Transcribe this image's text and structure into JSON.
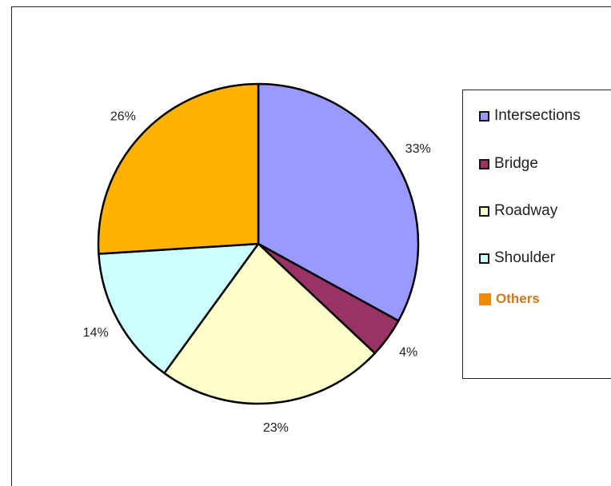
{
  "chart_data": {
    "type": "pie",
    "title": "",
    "slices": [
      {
        "label": "Intersections",
        "value": 33,
        "value_label": "33%",
        "color": "#9999FF"
      },
      {
        "label": "Bridge",
        "value": 4,
        "value_label": "4%",
        "color": "#993366"
      },
      {
        "label": "Roadway",
        "value": 23,
        "value_label": "23%",
        "color": "#FFFFCC"
      },
      {
        "label": "Shoulder",
        "value": 14,
        "value_label": "14%",
        "color": "#CCFFFF"
      },
      {
        "label": "Others",
        "value": 26,
        "value_label": "26%",
        "color": "#FFB300"
      }
    ],
    "legend": {
      "placement": "right",
      "items": [
        "Intersections",
        "Bridge",
        "Roadway",
        "Shoulder",
        "Others"
      ],
      "others_swatch_color": "#F08A00"
    }
  }
}
